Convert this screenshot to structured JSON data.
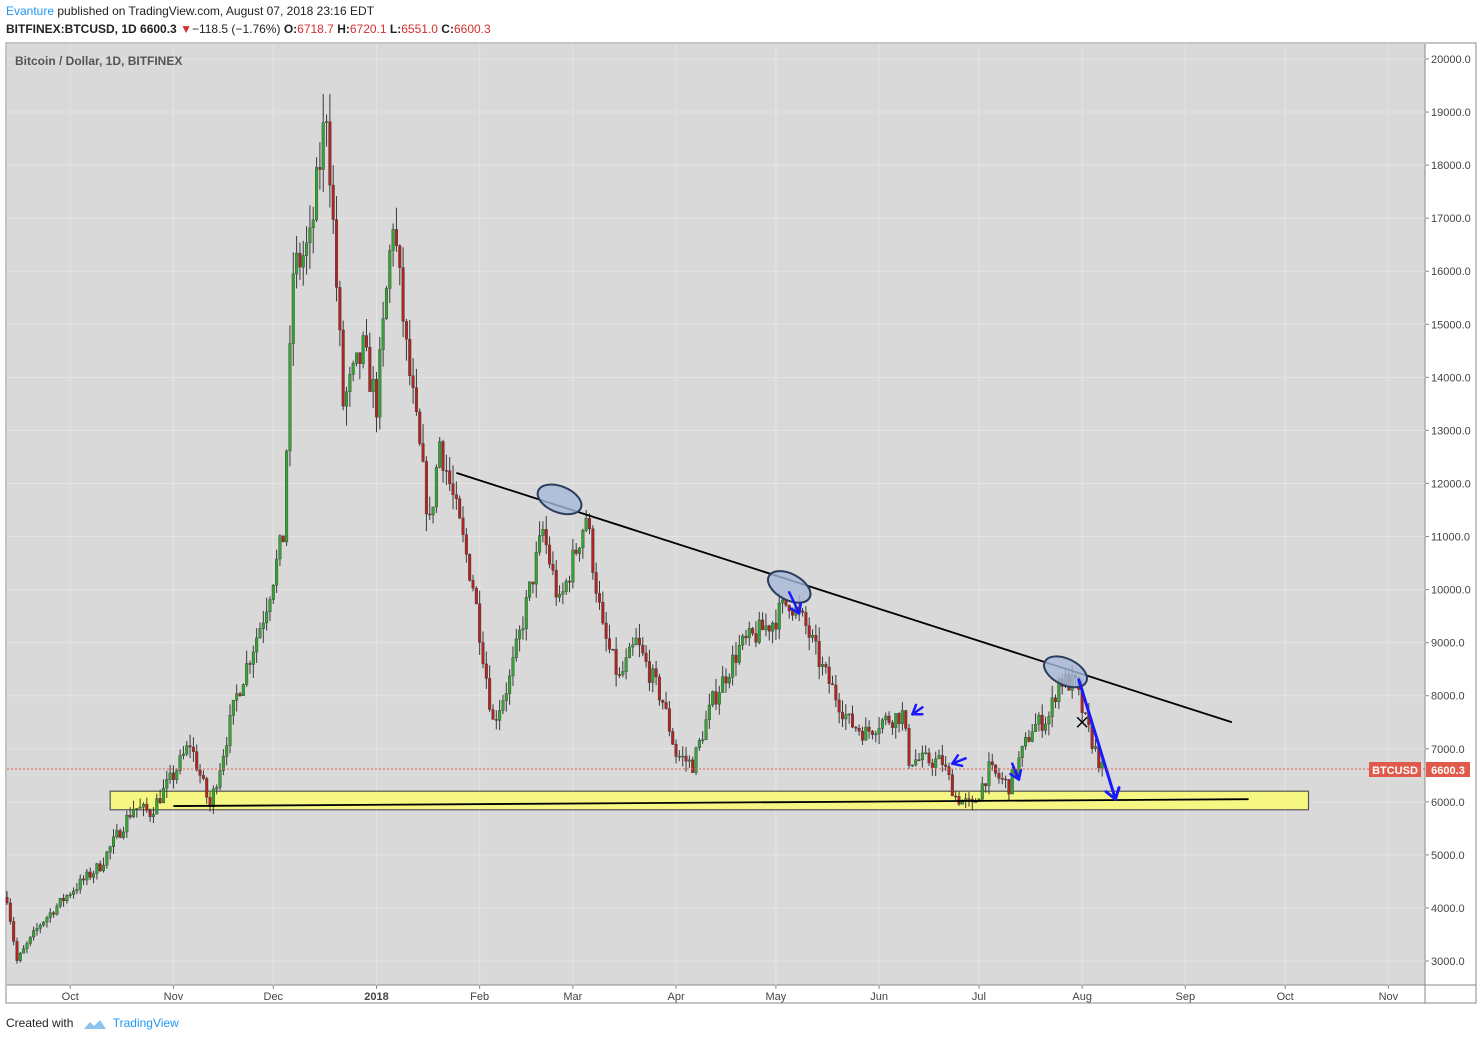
{
  "header": {
    "author": "Evanture",
    "published_text": "published on TradingView.com, August 07, 2018 23:16 EDT",
    "symbol": "BITFINEX:BTCUSD, 1D",
    "last": "6600.3",
    "change": "−118.5 (−1.76%)",
    "o_label": "O:",
    "o_value": "6718.7",
    "h_label": "H:",
    "h_value": "6720.1",
    "l_label": "L:",
    "l_value": "6551.0",
    "c_label": "C:",
    "c_value": "6600.3"
  },
  "footer": {
    "created_with": "Created with",
    "brand": "TradingView"
  },
  "colors": {
    "up": "#33a532",
    "down": "#b22424",
    "background": "#d9d9d9",
    "zone": "#ffff66",
    "arrow": "#1a1aff",
    "trendline": "#000000",
    "price_label": "#e05a4b"
  },
  "chart_data": {
    "type": "candlestick",
    "title": "Bitcoin / Dollar, 1D, BITFINEX",
    "price_label": {
      "name": "BTCUSD",
      "value": "6600.3"
    },
    "y_axis": {
      "min": 3000,
      "max": 20000,
      "ticks": [
        "3000.0",
        "4000.0",
        "5000.0",
        "6000.0",
        "7000.0",
        "8000.0",
        "9000.0",
        "10000.0",
        "11000.0",
        "12000.0",
        "13000.0",
        "14000.0",
        "15000.0",
        "16000.0",
        "17000.0",
        "18000.0",
        "19000.0",
        "20000.0"
      ]
    },
    "x_axis": {
      "start": "2017-09-12",
      "end": "2018-11-12",
      "ticks": [
        {
          "date": "2017-10-01",
          "label": "Oct"
        },
        {
          "date": "2017-11-01",
          "label": "Nov"
        },
        {
          "date": "2017-12-01",
          "label": "Dec"
        },
        {
          "date": "2018-01-01",
          "label": "2018"
        },
        {
          "date": "2018-02-01",
          "label": "Feb"
        },
        {
          "date": "2018-03-01",
          "label": "Mar"
        },
        {
          "date": "2018-04-01",
          "label": "Apr"
        },
        {
          "date": "2018-05-01",
          "label": "May"
        },
        {
          "date": "2018-06-01",
          "label": "Jun"
        },
        {
          "date": "2018-07-01",
          "label": "Jul"
        },
        {
          "date": "2018-08-01",
          "label": "Aug"
        },
        {
          "date": "2018-09-01",
          "label": "Sep"
        },
        {
          "date": "2018-10-01",
          "label": "Oct"
        },
        {
          "date": "2018-11-01",
          "label": "Nov"
        }
      ]
    },
    "price_path": [
      [
        "2017-09-12",
        4200
      ],
      [
        "2017-09-15",
        3000
      ],
      [
        "2017-09-22",
        3700
      ],
      [
        "2017-10-01",
        4300
      ],
      [
        "2017-10-10",
        4800
      ],
      [
        "2017-10-20",
        5900
      ],
      [
        "2017-10-25",
        5800
      ],
      [
        "2017-11-01",
        6500
      ],
      [
        "2017-11-06",
        7100
      ],
      [
        "2017-11-12",
        5900
      ],
      [
        "2017-11-20",
        8000
      ],
      [
        "2017-11-28",
        9500
      ],
      [
        "2017-12-04",
        11000
      ],
      [
        "2017-12-07",
        16000
      ],
      [
        "2017-12-12",
        16500
      ],
      [
        "2017-12-17",
        19100
      ],
      [
        "2017-12-22",
        13500
      ],
      [
        "2017-12-28",
        14500
      ],
      [
        "2018-01-01",
        13500
      ],
      [
        "2018-01-06",
        17000
      ],
      [
        "2018-01-10",
        14500
      ],
      [
        "2018-01-17",
        11200
      ],
      [
        "2018-01-20",
        12800
      ],
      [
        "2018-01-30",
        10100
      ],
      [
        "2018-02-05",
        7500
      ],
      [
        "2018-02-10",
        8300
      ],
      [
        "2018-02-20",
        11100
      ],
      [
        "2018-02-25",
        9700
      ],
      [
        "2018-03-05",
        11400
      ],
      [
        "2018-03-10",
        9200
      ],
      [
        "2018-03-15",
        8300
      ],
      [
        "2018-03-20",
        9000
      ],
      [
        "2018-03-28",
        7900
      ],
      [
        "2018-04-01",
        6900
      ],
      [
        "2018-04-06",
        6700
      ],
      [
        "2018-04-12",
        7900
      ],
      [
        "2018-04-20",
        8900
      ],
      [
        "2018-04-30",
        9400
      ],
      [
        "2018-05-05",
        9800
      ],
      [
        "2018-05-10",
        9300
      ],
      [
        "2018-05-15",
        8500
      ],
      [
        "2018-05-23",
        7500
      ],
      [
        "2018-05-28",
        7300
      ],
      [
        "2018-06-01",
        7500
      ],
      [
        "2018-06-08",
        7650
      ],
      [
        "2018-06-10",
        6800
      ],
      [
        "2018-06-20",
        6750
      ],
      [
        "2018-06-24",
        6100
      ],
      [
        "2018-06-29",
        5900
      ],
      [
        "2018-07-04",
        6600
      ],
      [
        "2018-07-10",
        6300
      ],
      [
        "2018-07-17",
        7400
      ],
      [
        "2018-07-22",
        7600
      ],
      [
        "2018-07-25",
        8300
      ],
      [
        "2018-07-30",
        8200
      ],
      [
        "2018-08-02",
        7500
      ],
      [
        "2018-08-07",
        6600
      ]
    ],
    "annotations": {
      "trendline": [
        [
          "2018-01-25",
          12200
        ],
        [
          "2018-09-15",
          7500
        ]
      ],
      "support_line": [
        [
          "2017-11-01",
          5920
        ],
        [
          "2018-09-20",
          6050
        ]
      ],
      "support_zone": {
        "start": "2017-10-13",
        "end": "2018-10-08",
        "low": 5850,
        "high": 6200
      },
      "ellipses": [
        [
          "2018-02-25",
          11700
        ],
        [
          "2018-05-05",
          10050
        ],
        [
          "2018-07-27",
          8450
        ]
      ],
      "small_arrows": [
        {
          "from": [
            "2018-05-05",
            9950
          ],
          "to": [
            "2018-05-08",
            9550
          ]
        },
        {
          "from": [
            "2018-06-14",
            7780
          ],
          "to": [
            "2018-06-11",
            7650
          ]
        },
        {
          "from": [
            "2018-06-27",
            6820
          ],
          "to": [
            "2018-06-23",
            6720
          ]
        },
        {
          "from": [
            "2018-07-11",
            6720
          ],
          "to": [
            "2018-07-13",
            6420
          ]
        }
      ],
      "big_arrow": {
        "from": [
          "2018-07-31",
          8300
        ],
        "to": [
          "2018-08-11",
          6050
        ]
      },
      "cross": [
        "2018-08-01",
        7500
      ]
    }
  }
}
